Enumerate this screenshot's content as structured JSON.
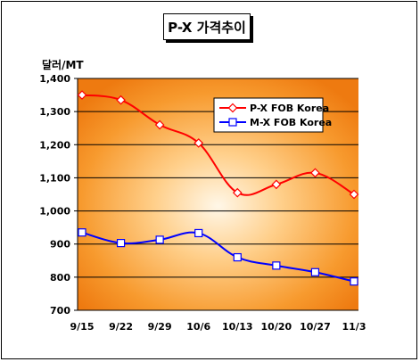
{
  "title": "P-X 가격추이",
  "chart_data": {
    "type": "line",
    "ylabel": "달러/MT",
    "ylim": [
      700,
      1400
    ],
    "yticks": [
      "700",
      "800",
      "900",
      "1,000",
      "1,100",
      "1,200",
      "1,300",
      "1,400"
    ],
    "yticks_values": [
      700,
      800,
      900,
      1000,
      1100,
      1200,
      1300,
      1400
    ],
    "categories": [
      "9/15",
      "9/22",
      "9/29",
      "10/6",
      "10/13",
      "10/20",
      "10/27",
      "11/3"
    ],
    "grid": true,
    "legend_position": "top-right",
    "series": [
      {
        "name": "P-X FOB Korea",
        "color": "#ff0000",
        "marker": "diamond",
        "values": [
          1350,
          1335,
          1260,
          1205,
          1055,
          1080,
          1115,
          1050
        ]
      },
      {
        "name": "M-X FOB Korea",
        "color": "#0000ff",
        "marker": "square",
        "values": [
          935,
          903,
          913,
          933,
          860,
          835,
          815,
          787
        ]
      }
    ]
  }
}
